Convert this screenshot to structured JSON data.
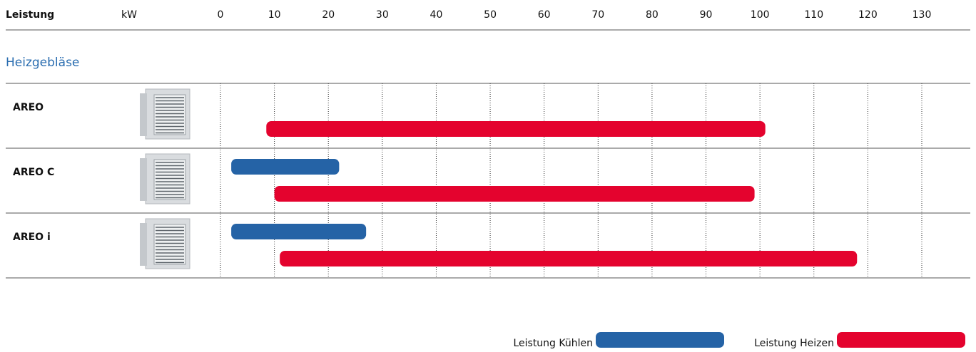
{
  "chart_data": {
    "type": "range_bar",
    "axis_title": "Leistung",
    "unit": "kW",
    "section": "Heizgebläse",
    "categories": [
      "AREO",
      "AREO C",
      "AREO i"
    ],
    "xlim": [
      0,
      130
    ],
    "xticks": [
      0,
      10,
      20,
      30,
      40,
      50,
      60,
      70,
      80,
      90,
      100,
      110,
      120,
      130
    ],
    "grid": true,
    "series": [
      {
        "name": "Leistung Kühlen",
        "color": "#2563a6",
        "values": [
          null,
          [
            2,
            22
          ],
          [
            2,
            27
          ]
        ]
      },
      {
        "name": "Leistung Heizen",
        "color": "#e4032e",
        "values": [
          [
            8.5,
            101
          ],
          [
            10,
            99
          ],
          [
            11,
            118
          ]
        ]
      }
    ]
  }
}
